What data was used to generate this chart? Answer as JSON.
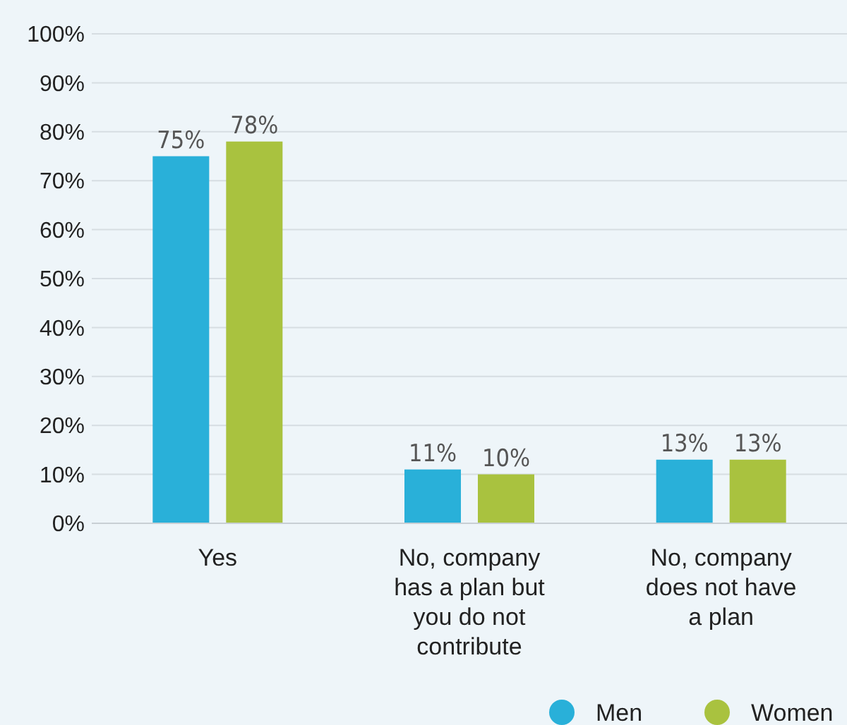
{
  "chart_data": {
    "type": "bar",
    "categories": [
      "Yes",
      "No, company has a plan but you do not contribute",
      "No, company does not have a plan"
    ],
    "series": [
      {
        "name": "Men",
        "color": "#29b0d9",
        "values": [
          75,
          11,
          13
        ],
        "value_labels": [
          "75%",
          "11%",
          "13%"
        ]
      },
      {
        "name": "Women",
        "color": "#a9c23f",
        "values": [
          78,
          10,
          13
        ],
        "value_labels": [
          "78%",
          "10%",
          "13%"
        ]
      }
    ],
    "ylim": [
      0,
      100
    ],
    "yticks": [
      {
        "value": 0,
        "label": "0%"
      },
      {
        "value": 10,
        "label": "10%"
      },
      {
        "value": 20,
        "label": "20%"
      },
      {
        "value": 30,
        "label": "30%"
      },
      {
        "value": 40,
        "label": "40%"
      },
      {
        "value": 50,
        "label": "50%"
      },
      {
        "value": 60,
        "label": "60%"
      },
      {
        "value": 70,
        "label": "70%"
      },
      {
        "value": 80,
        "label": "80%"
      },
      {
        "value": 90,
        "label": "90%"
      },
      {
        "value": 100,
        "label": "100%"
      }
    ],
    "grid": "y",
    "legend": "bottom right"
  }
}
